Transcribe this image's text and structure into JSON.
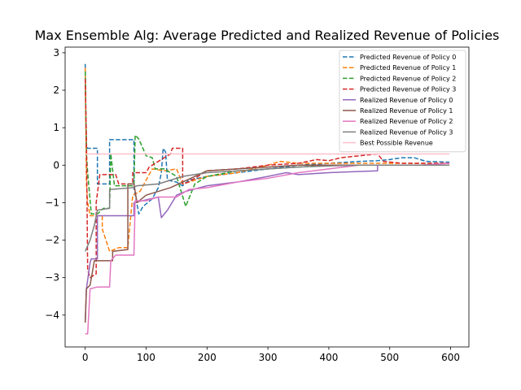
{
  "chart_data": {
    "type": "line",
    "title": "Max Ensemble Alg: Average Predicted and Realized Revenue of Policies",
    "xlabel": "",
    "ylabel": "",
    "xlim": [
      -33,
      630
    ],
    "ylim": [
      -4.85,
      3.15
    ],
    "xticks": [
      0,
      100,
      200,
      300,
      400,
      500,
      600
    ],
    "yticks": [
      -4,
      -3,
      -2,
      -1,
      0,
      1,
      2,
      3
    ],
    "grid": false,
    "legend_position": "top-right",
    "series": [
      {
        "name": "Predicted Revenue of Policy 0",
        "color": "#1f77b4",
        "dash": "dashed",
        "points": [
          [
            0,
            2.7
          ],
          [
            1,
            1.2
          ],
          [
            2,
            0.5
          ],
          [
            4,
            0.45
          ],
          [
            20,
            0.45
          ],
          [
            20,
            -0.5
          ],
          [
            40,
            -0.5
          ],
          [
            40,
            0.68
          ],
          [
            80,
            0.68
          ],
          [
            80,
            -0.6
          ],
          [
            88,
            -1.3
          ],
          [
            95,
            -1.1
          ],
          [
            110,
            -0.9
          ],
          [
            120,
            -0.6
          ],
          [
            125,
            -0.2
          ],
          [
            128,
            0.45
          ],
          [
            132,
            0.35
          ],
          [
            135,
            -0.4
          ],
          [
            150,
            -0.45
          ],
          [
            160,
            -0.55
          ],
          [
            170,
            -0.4
          ],
          [
            200,
            -0.3
          ],
          [
            250,
            -0.2
          ],
          [
            300,
            -0.1
          ],
          [
            350,
            0.0
          ],
          [
            400,
            0.05
          ],
          [
            450,
            0.1
          ],
          [
            480,
            0.12
          ],
          [
            500,
            0.15
          ],
          [
            520,
            0.2
          ],
          [
            540,
            0.2
          ],
          [
            560,
            0.1
          ],
          [
            598,
            0.08
          ]
        ]
      },
      {
        "name": "Predicted Revenue of Policy 1",
        "color": "#ff7f0e",
        "dash": "dashed",
        "points": [
          [
            0,
            2.6
          ],
          [
            2,
            -0.5
          ],
          [
            4,
            -1.0
          ],
          [
            8,
            -1.35
          ],
          [
            28,
            -1.35
          ],
          [
            28,
            -1.7
          ],
          [
            40,
            -2.3
          ],
          [
            55,
            -2.2
          ],
          [
            70,
            -2.2
          ],
          [
            78,
            -0.8
          ],
          [
            90,
            -0.7
          ],
          [
            110,
            -0.1
          ],
          [
            130,
            -0.15
          ],
          [
            150,
            -0.1
          ],
          [
            160,
            -0.5
          ],
          [
            200,
            -0.3
          ],
          [
            250,
            -0.2
          ],
          [
            300,
            0.0
          ],
          [
            320,
            0.1
          ],
          [
            350,
            0.05
          ],
          [
            400,
            0.05
          ],
          [
            450,
            0.05
          ],
          [
            500,
            0.05
          ],
          [
            550,
            0.05
          ],
          [
            598,
            0.05
          ]
        ]
      },
      {
        "name": "Predicted Revenue of Policy 2",
        "color": "#2ca02c",
        "dash": "dashed",
        "points": [
          [
            0,
            2.5
          ],
          [
            2,
            0.3
          ],
          [
            4,
            -0.2
          ],
          [
            10,
            -1.3
          ],
          [
            20,
            -1.3
          ],
          [
            30,
            -1.15
          ],
          [
            40,
            -1.15
          ],
          [
            42,
            0.3
          ],
          [
            48,
            -0.55
          ],
          [
            80,
            -0.55
          ],
          [
            82,
            0.8
          ],
          [
            88,
            0.7
          ],
          [
            100,
            0.25
          ],
          [
            110,
            0.2
          ],
          [
            115,
            -0.1
          ],
          [
            130,
            -0.1
          ],
          [
            150,
            -0.3
          ],
          [
            165,
            -1.1
          ],
          [
            180,
            -0.5
          ],
          [
            200,
            -0.3
          ],
          [
            250,
            -0.15
          ],
          [
            300,
            -0.1
          ],
          [
            350,
            -0.05
          ],
          [
            400,
            0.0
          ],
          [
            450,
            0.0
          ],
          [
            500,
            0.0
          ],
          [
            550,
            0.0
          ],
          [
            598,
            0.0
          ]
        ]
      },
      {
        "name": "Predicted Revenue of Policy 3",
        "color": "#d62728",
        "dash": "dashed",
        "points": [
          [
            0,
            2.3
          ],
          [
            2,
            0.7
          ],
          [
            4,
            -2.8
          ],
          [
            8,
            -3.0
          ],
          [
            18,
            -2.9
          ],
          [
            18,
            -1.0
          ],
          [
            24,
            -0.25
          ],
          [
            50,
            -0.25
          ],
          [
            55,
            -0.5
          ],
          [
            78,
            -0.5
          ],
          [
            78,
            -0.2
          ],
          [
            100,
            -0.2
          ],
          [
            105,
            -0.05
          ],
          [
            120,
            0.1
          ],
          [
            140,
            0.3
          ],
          [
            143,
            0.45
          ],
          [
            160,
            0.45
          ],
          [
            160,
            -0.5
          ],
          [
            170,
            -0.45
          ],
          [
            200,
            -0.15
          ],
          [
            250,
            -0.1
          ],
          [
            300,
            0.0
          ],
          [
            350,
            0.05
          ],
          [
            380,
            0.15
          ],
          [
            400,
            0.12
          ],
          [
            420,
            0.2
          ],
          [
            450,
            0.25
          ],
          [
            480,
            0.3
          ],
          [
            490,
            0.1
          ],
          [
            520,
            0.05
          ],
          [
            560,
            0.05
          ],
          [
            598,
            0.05
          ]
        ]
      },
      {
        "name": "Realized Revenue of Policy 0",
        "color": "#9467bd",
        "dash": "solid",
        "points": [
          [
            0,
            -4.2
          ],
          [
            2,
            -3.3
          ],
          [
            8,
            -2.6
          ],
          [
            10,
            -2.5
          ],
          [
            20,
            -2.5
          ],
          [
            20,
            -1.35
          ],
          [
            80,
            -1.35
          ],
          [
            80,
            -1.0
          ],
          [
            120,
            -0.85
          ],
          [
            125,
            -1.4
          ],
          [
            135,
            -1.2
          ],
          [
            150,
            -0.8
          ],
          [
            165,
            -0.7
          ],
          [
            200,
            -0.55
          ],
          [
            250,
            -0.45
          ],
          [
            300,
            -0.3
          ],
          [
            330,
            -0.2
          ],
          [
            350,
            -0.25
          ],
          [
            400,
            -0.2
          ],
          [
            430,
            -0.18
          ],
          [
            480,
            -0.15
          ],
          [
            480,
            0.0
          ],
          [
            598,
            0.0
          ]
        ]
      },
      {
        "name": "Realized Revenue of Policy 1",
        "color": "#8c564b",
        "dash": "solid",
        "points": [
          [
            0,
            -4.2
          ],
          [
            2,
            -3.3
          ],
          [
            8,
            -3.2
          ],
          [
            15,
            -2.55
          ],
          [
            45,
            -2.55
          ],
          [
            45,
            -2.3
          ],
          [
            70,
            -2.25
          ],
          [
            70,
            -0.5
          ],
          [
            80,
            -0.5
          ],
          [
            85,
            -1.0
          ],
          [
            100,
            -0.8
          ],
          [
            140,
            -0.6
          ],
          [
            160,
            -0.45
          ],
          [
            200,
            -0.15
          ],
          [
            250,
            -0.1
          ],
          [
            300,
            -0.05
          ],
          [
            350,
            0.0
          ],
          [
            400,
            0.0
          ],
          [
            450,
            0.0
          ],
          [
            500,
            0.0
          ],
          [
            550,
            0.0
          ],
          [
            598,
            0.0
          ]
        ]
      },
      {
        "name": "Realized Revenue of Policy 2",
        "color": "#e377c2",
        "dash": "solid",
        "points": [
          [
            0,
            -4.5
          ],
          [
            4,
            -4.5
          ],
          [
            8,
            -3.3
          ],
          [
            20,
            -3.25
          ],
          [
            40,
            -3.25
          ],
          [
            42,
            -2.55
          ],
          [
            50,
            -2.4
          ],
          [
            80,
            -2.4
          ],
          [
            82,
            -0.95
          ],
          [
            100,
            -0.95
          ],
          [
            120,
            -0.85
          ],
          [
            150,
            -0.85
          ],
          [
            170,
            -0.65
          ],
          [
            200,
            -0.6
          ],
          [
            250,
            -0.45
          ],
          [
            300,
            -0.35
          ],
          [
            350,
            -0.2
          ],
          [
            400,
            -0.1
          ],
          [
            450,
            0.0
          ],
          [
            500,
            0.0
          ],
          [
            550,
            0.0
          ],
          [
            598,
            0.05
          ]
        ]
      },
      {
        "name": "Realized Revenue of Policy 3",
        "color": "#7f7f7f",
        "dash": "solid",
        "points": [
          [
            0,
            -2.3
          ],
          [
            8,
            -2.0
          ],
          [
            15,
            -1.6
          ],
          [
            20,
            -1.2
          ],
          [
            40,
            -1.15
          ],
          [
            40,
            -0.65
          ],
          [
            78,
            -0.6
          ],
          [
            85,
            -0.55
          ],
          [
            120,
            -0.5
          ],
          [
            160,
            -0.3
          ],
          [
            200,
            -0.2
          ],
          [
            250,
            -0.15
          ],
          [
            300,
            -0.1
          ],
          [
            350,
            -0.05
          ],
          [
            400,
            -0.02
          ],
          [
            450,
            0.0
          ],
          [
            500,
            0.0
          ],
          [
            550,
            0.0
          ],
          [
            598,
            0.0
          ]
        ]
      },
      {
        "name": "Best Possible Revenue",
        "color": "#ffc0cb",
        "dash": "solid",
        "points": [
          [
            0,
            0.3
          ],
          [
            598,
            0.3
          ]
        ]
      }
    ]
  }
}
